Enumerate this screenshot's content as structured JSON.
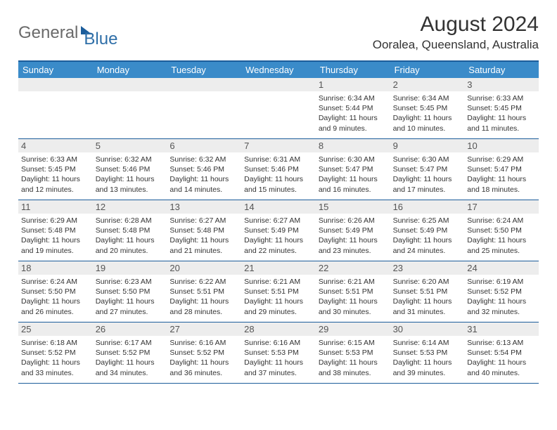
{
  "logo": {
    "text1": "General",
    "text2": "Blue"
  },
  "title": "August 2024",
  "location": "Ooralea, Queensland, Australia",
  "weekdays": [
    "Sunday",
    "Monday",
    "Tuesday",
    "Wednesday",
    "Thursday",
    "Friday",
    "Saturday"
  ],
  "colors": {
    "header_bg": "#3a8bc9",
    "border": "#1c5d9b",
    "daynum_bg": "#ededed",
    "text": "#333333"
  },
  "first_weekday_index": 4,
  "num_days": 31,
  "days": {
    "1": {
      "sunrise": "6:34 AM",
      "sunset": "5:44 PM",
      "daylight": "11 hours and 9 minutes."
    },
    "2": {
      "sunrise": "6:34 AM",
      "sunset": "5:45 PM",
      "daylight": "11 hours and 10 minutes."
    },
    "3": {
      "sunrise": "6:33 AM",
      "sunset": "5:45 PM",
      "daylight": "11 hours and 11 minutes."
    },
    "4": {
      "sunrise": "6:33 AM",
      "sunset": "5:45 PM",
      "daylight": "11 hours and 12 minutes."
    },
    "5": {
      "sunrise": "6:32 AM",
      "sunset": "5:46 PM",
      "daylight": "11 hours and 13 minutes."
    },
    "6": {
      "sunrise": "6:32 AM",
      "sunset": "5:46 PM",
      "daylight": "11 hours and 14 minutes."
    },
    "7": {
      "sunrise": "6:31 AM",
      "sunset": "5:46 PM",
      "daylight": "11 hours and 15 minutes."
    },
    "8": {
      "sunrise": "6:30 AM",
      "sunset": "5:47 PM",
      "daylight": "11 hours and 16 minutes."
    },
    "9": {
      "sunrise": "6:30 AM",
      "sunset": "5:47 PM",
      "daylight": "11 hours and 17 minutes."
    },
    "10": {
      "sunrise": "6:29 AM",
      "sunset": "5:47 PM",
      "daylight": "11 hours and 18 minutes."
    },
    "11": {
      "sunrise": "6:29 AM",
      "sunset": "5:48 PM",
      "daylight": "11 hours and 19 minutes."
    },
    "12": {
      "sunrise": "6:28 AM",
      "sunset": "5:48 PM",
      "daylight": "11 hours and 20 minutes."
    },
    "13": {
      "sunrise": "6:27 AM",
      "sunset": "5:48 PM",
      "daylight": "11 hours and 21 minutes."
    },
    "14": {
      "sunrise": "6:27 AM",
      "sunset": "5:49 PM",
      "daylight": "11 hours and 22 minutes."
    },
    "15": {
      "sunrise": "6:26 AM",
      "sunset": "5:49 PM",
      "daylight": "11 hours and 23 minutes."
    },
    "16": {
      "sunrise": "6:25 AM",
      "sunset": "5:49 PM",
      "daylight": "11 hours and 24 minutes."
    },
    "17": {
      "sunrise": "6:24 AM",
      "sunset": "5:50 PM",
      "daylight": "11 hours and 25 minutes."
    },
    "18": {
      "sunrise": "6:24 AM",
      "sunset": "5:50 PM",
      "daylight": "11 hours and 26 minutes."
    },
    "19": {
      "sunrise": "6:23 AM",
      "sunset": "5:50 PM",
      "daylight": "11 hours and 27 minutes."
    },
    "20": {
      "sunrise": "6:22 AM",
      "sunset": "5:51 PM",
      "daylight": "11 hours and 28 minutes."
    },
    "21": {
      "sunrise": "6:21 AM",
      "sunset": "5:51 PM",
      "daylight": "11 hours and 29 minutes."
    },
    "22": {
      "sunrise": "6:21 AM",
      "sunset": "5:51 PM",
      "daylight": "11 hours and 30 minutes."
    },
    "23": {
      "sunrise": "6:20 AM",
      "sunset": "5:51 PM",
      "daylight": "11 hours and 31 minutes."
    },
    "24": {
      "sunrise": "6:19 AM",
      "sunset": "5:52 PM",
      "daylight": "11 hours and 32 minutes."
    },
    "25": {
      "sunrise": "6:18 AM",
      "sunset": "5:52 PM",
      "daylight": "11 hours and 33 minutes."
    },
    "26": {
      "sunrise": "6:17 AM",
      "sunset": "5:52 PM",
      "daylight": "11 hours and 34 minutes."
    },
    "27": {
      "sunrise": "6:16 AM",
      "sunset": "5:52 PM",
      "daylight": "11 hours and 36 minutes."
    },
    "28": {
      "sunrise": "6:16 AM",
      "sunset": "5:53 PM",
      "daylight": "11 hours and 37 minutes."
    },
    "29": {
      "sunrise": "6:15 AM",
      "sunset": "5:53 PM",
      "daylight": "11 hours and 38 minutes."
    },
    "30": {
      "sunrise": "6:14 AM",
      "sunset": "5:53 PM",
      "daylight": "11 hours and 39 minutes."
    },
    "31": {
      "sunrise": "6:13 AM",
      "sunset": "5:54 PM",
      "daylight": "11 hours and 40 minutes."
    }
  },
  "labels": {
    "sunrise_prefix": "Sunrise: ",
    "sunset_prefix": "Sunset: ",
    "daylight_prefix": "Daylight: "
  }
}
